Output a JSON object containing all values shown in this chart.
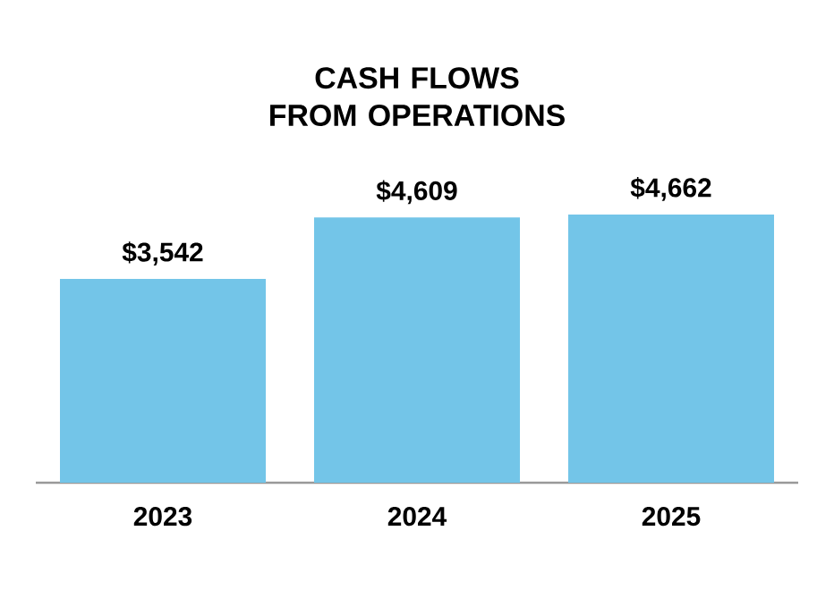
{
  "chart_data": {
    "type": "bar",
    "title": "CASH FLOWS FROM OPERATIONS",
    "categories": [
      "2023",
      "2024",
      "2025"
    ],
    "values": [
      3542,
      4609,
      4662
    ],
    "value_labels": [
      "$3,542",
      "$4,609",
      "$4,662"
    ],
    "color": "#73c5e8"
  }
}
